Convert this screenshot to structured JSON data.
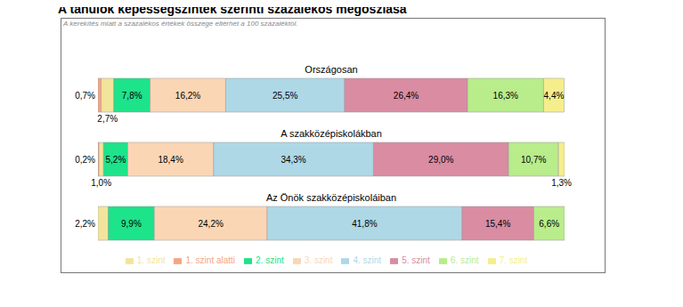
{
  "chart_data": {
    "type": "bar",
    "title": "A tanulók képességszintek szerinti százalékos megoszlása",
    "subtitle": "A kerekítés miatt a százalékos értékek összege eltérhet a 100 százaléktól.",
    "orientation": "horizontal",
    "stacked": true,
    "data_labels": true,
    "tick_labels": false,
    "legend": "bottom",
    "categories": [
      "Országosan",
      "A szakközépiskolákban",
      "Az Önök szakközépiskoláiban"
    ],
    "series": [
      {
        "name": "1. szint alatti",
        "color": "#F4A582",
        "values": [
          0.7,
          0.2,
          null
        ],
        "value_labels": [
          "0,7%",
          "0,2%",
          null
        ]
      },
      {
        "name": "1. szint",
        "color": "#F3E49C",
        "values": [
          2.7,
          1.0,
          2.2
        ],
        "value_labels": [
          "2,7%",
          "1,0%",
          "2,2%"
        ]
      },
      {
        "name": "2. szint",
        "color": "#1DE38A",
        "values": [
          7.8,
          5.2,
          9.9
        ],
        "value_labels": [
          "7,8%",
          "5,2%",
          "9,9%"
        ]
      },
      {
        "name": "3. szint",
        "color": "#FBD6B4",
        "values": [
          16.2,
          18.4,
          24.2
        ],
        "value_labels": [
          "16,2%",
          "18,4%",
          "24,2%"
        ]
      },
      {
        "name": "4. szint",
        "color": "#AED8E6",
        "values": [
          25.5,
          34.3,
          41.8
        ],
        "value_labels": [
          "25,5%",
          "34,3%",
          "41,8%"
        ]
      },
      {
        "name": "5. szint",
        "color": "#D98CA2",
        "values": [
          26.4,
          29.0,
          15.4
        ],
        "value_labels": [
          "26,4%",
          "29,0%",
          "15,4%"
        ]
      },
      {
        "name": "6. szint",
        "color": "#B9EC8A",
        "values": [
          16.3,
          10.7,
          6.6
        ],
        "value_labels": [
          "16,3%",
          "10,7%",
          "6,6%"
        ]
      },
      {
        "name": "7. szint",
        "color": "#F6EE8C",
        "values": [
          4.4,
          1.3,
          null
        ],
        "value_labels": [
          "4,4%",
          "1,3%",
          null
        ]
      }
    ]
  }
}
